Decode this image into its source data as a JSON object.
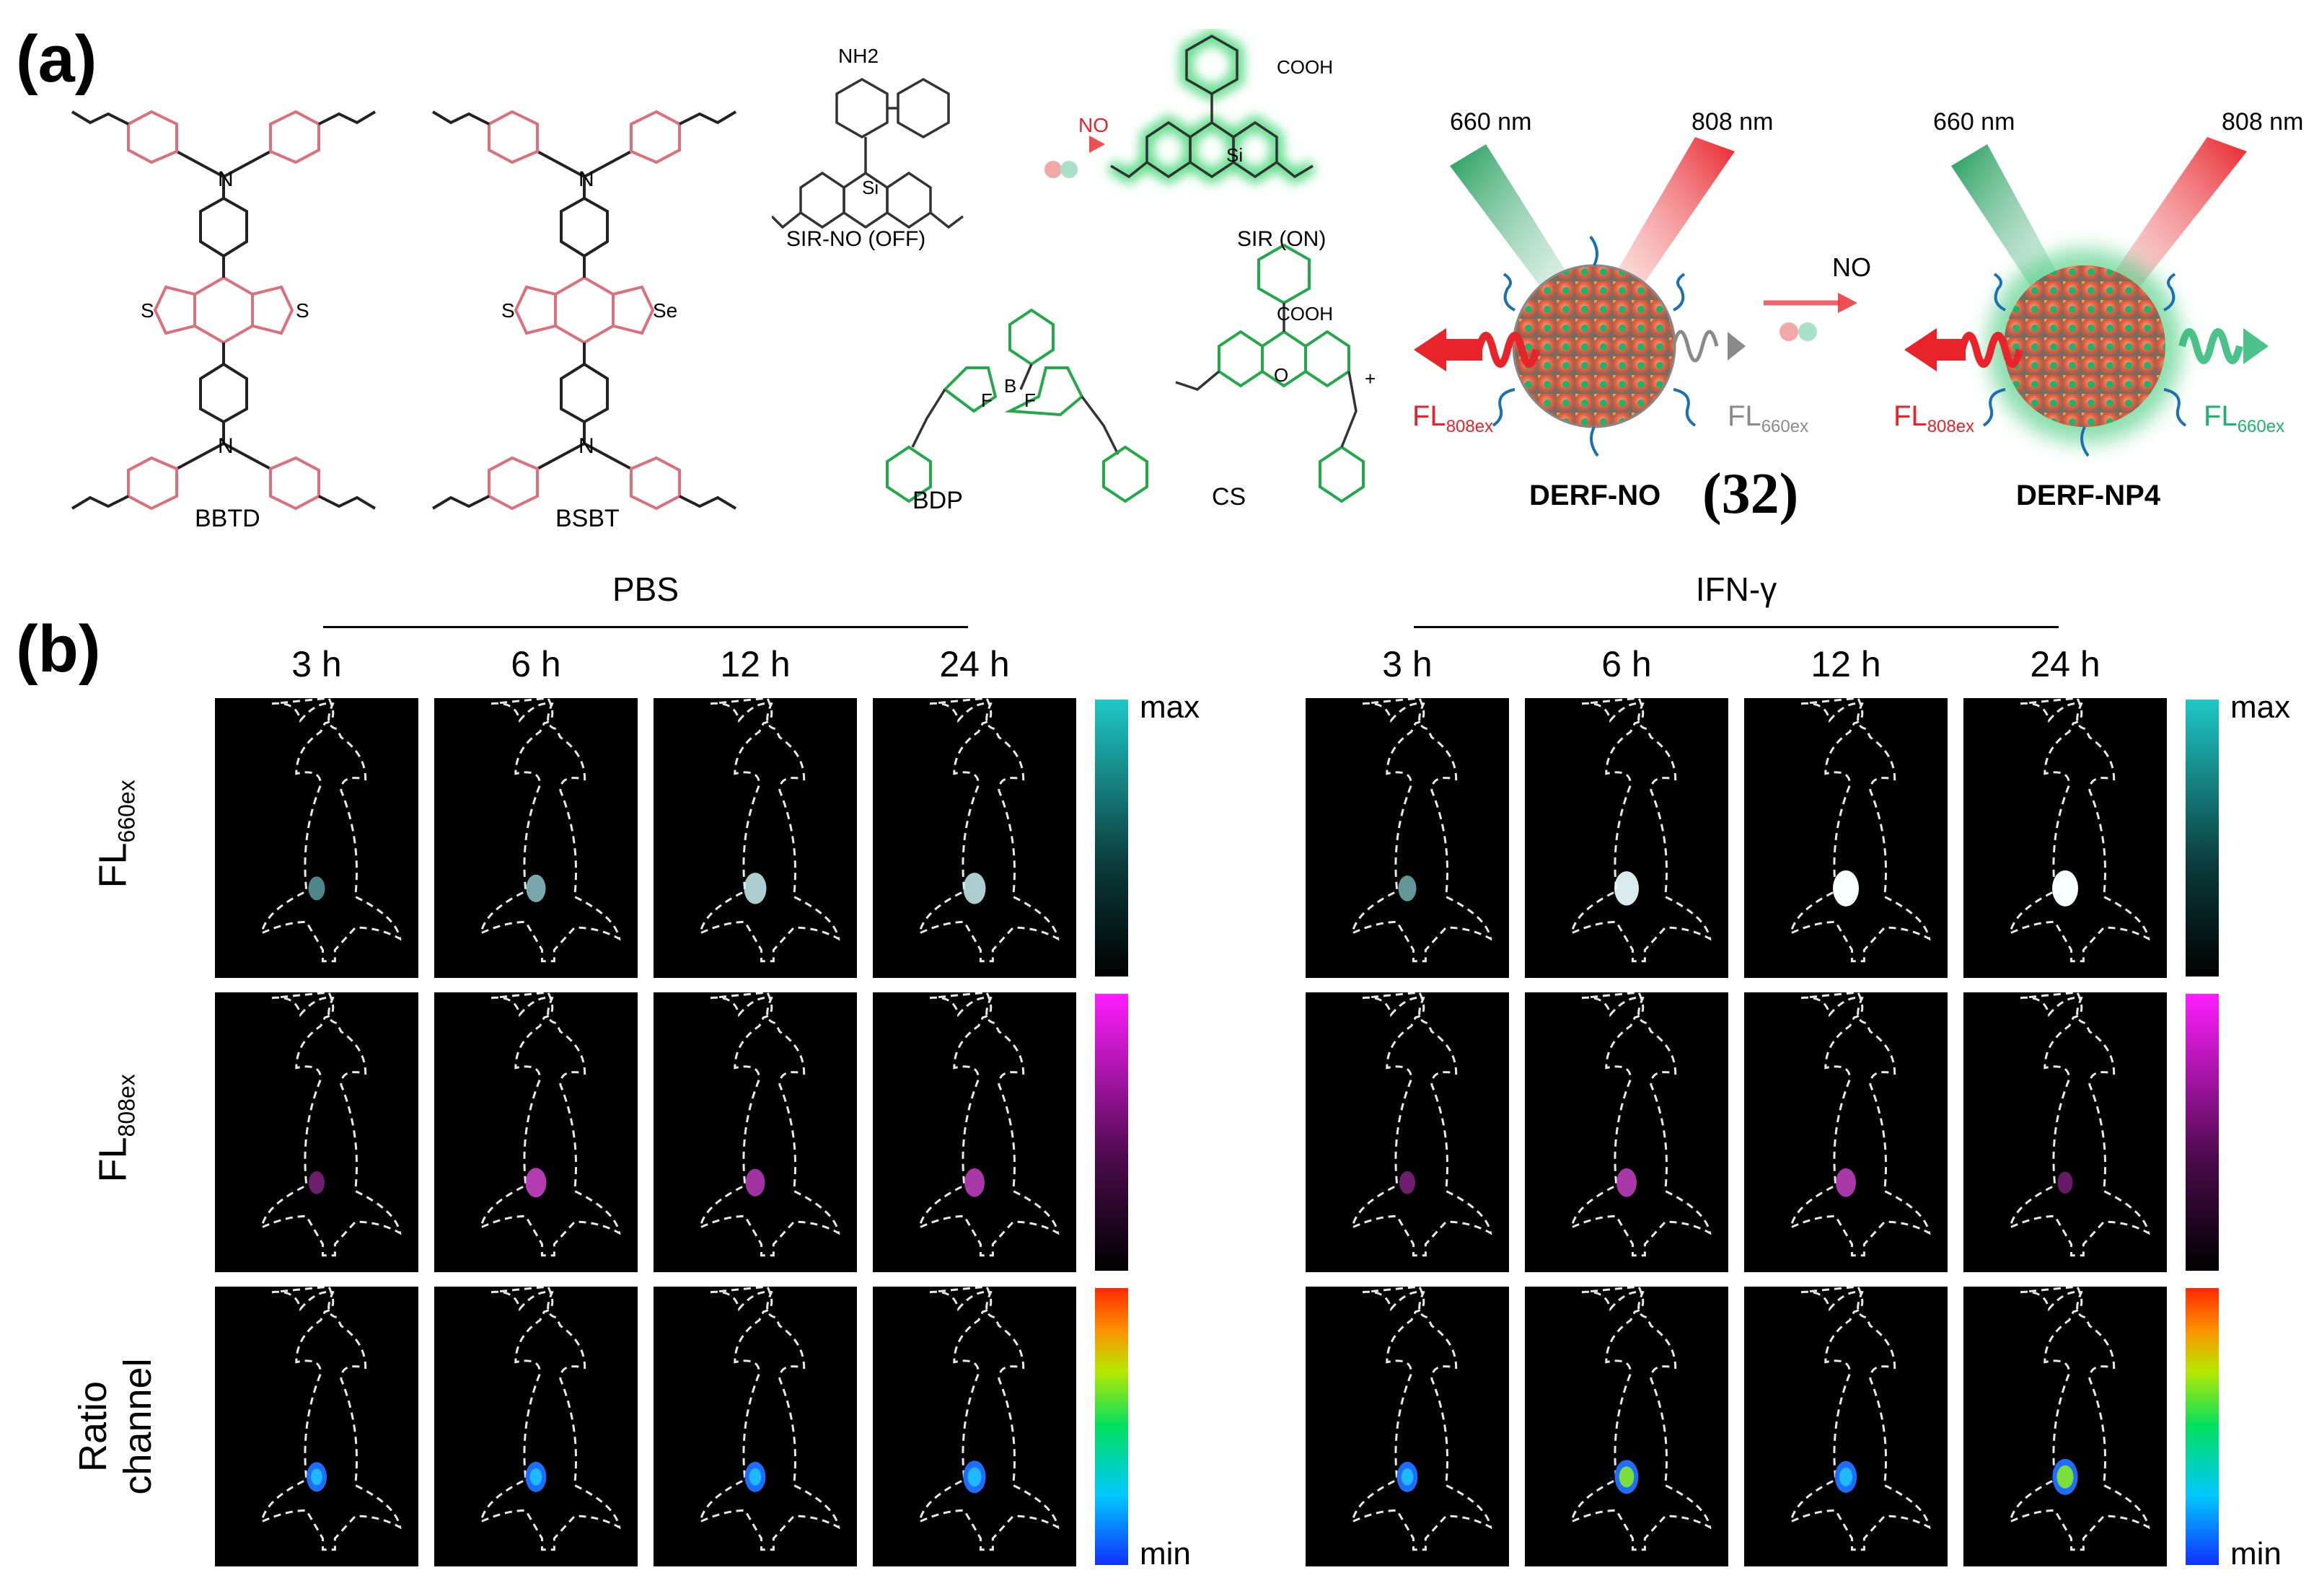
{
  "panel_a": {
    "label": "(a)",
    "molecules": {
      "bbtd": "BBTD",
      "bsbt": "BSBT",
      "sir_no": "SIR-NO (OFF)",
      "sir": "SIR (ON)",
      "bdp": "BDP",
      "cs": "CS"
    },
    "atoms": {
      "n": "N",
      "s": "S",
      "se": "Se",
      "si": "Si",
      "b": "B",
      "f": "F",
      "o": "O",
      "nh2": "NH2",
      "cooh": "COOH",
      "plus": "+"
    },
    "reaction_label": "NO",
    "probe": {
      "ex1": "660 nm",
      "ex2": "808 nm",
      "fl808": "FL",
      "fl808_sub": "808ex",
      "fl660": "FL",
      "fl660_sub": "660ex",
      "left_name": "DERF-NO",
      "ref": "(32)",
      "right_name": "DERF-NP4",
      "arrow_label": "NO"
    },
    "colors": {
      "accent_red": "#e8232a",
      "accent_green": "#1db36b",
      "gray": "#8a8a8a"
    }
  },
  "panel_b": {
    "label": "(b)",
    "groups": [
      "PBS",
      "IFN-γ"
    ],
    "timepoints": [
      "3 h",
      "6 h",
      "12 h",
      "24 h"
    ],
    "rows": [
      {
        "label": "FL",
        "sub": "660ex",
        "cmap": "cyan"
      },
      {
        "label": "FL",
        "sub": "808ex",
        "cmap": "magenta"
      },
      {
        "label": "Ratio channel",
        "cmap": "rainbow"
      }
    ],
    "colorbar_labels": {
      "max": "max",
      "min": "min"
    },
    "signal_levels": {
      "PBS": {
        "cyan": [
          0.35,
          0.55,
          0.75,
          0.75
        ],
        "magenta": [
          0.3,
          0.65,
          0.55,
          0.6
        ],
        "rainbow": [
          0.25,
          0.3,
          0.3,
          0.45
        ]
      },
      "IFN-γ": {
        "cyan": [
          0.45,
          0.9,
          1.0,
          1.0
        ],
        "magenta": [
          0.3,
          0.6,
          0.6,
          0.25
        ],
        "rainbow": [
          0.3,
          0.55,
          0.4,
          0.7
        ]
      }
    }
  }
}
